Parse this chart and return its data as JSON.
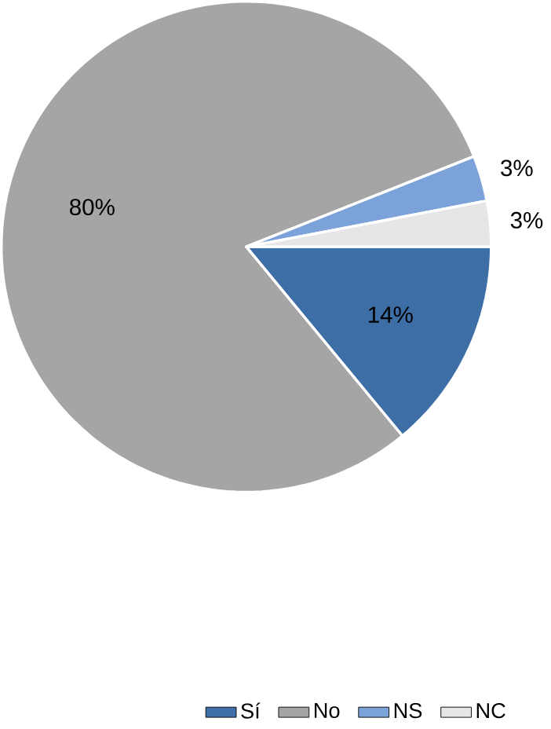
{
  "chart_data": {
    "type": "pie",
    "categories": [
      "Sí",
      "No",
      "NS",
      "NC"
    ],
    "values": [
      14,
      80,
      3,
      3
    ],
    "colors": [
      "#3e6ea6",
      "#a5a5a5",
      "#7ba3d9",
      "#e6e6e6"
    ],
    "value_labels": [
      "14%",
      "80%",
      "3%",
      "3%"
    ],
    "legend": "bottom"
  }
}
